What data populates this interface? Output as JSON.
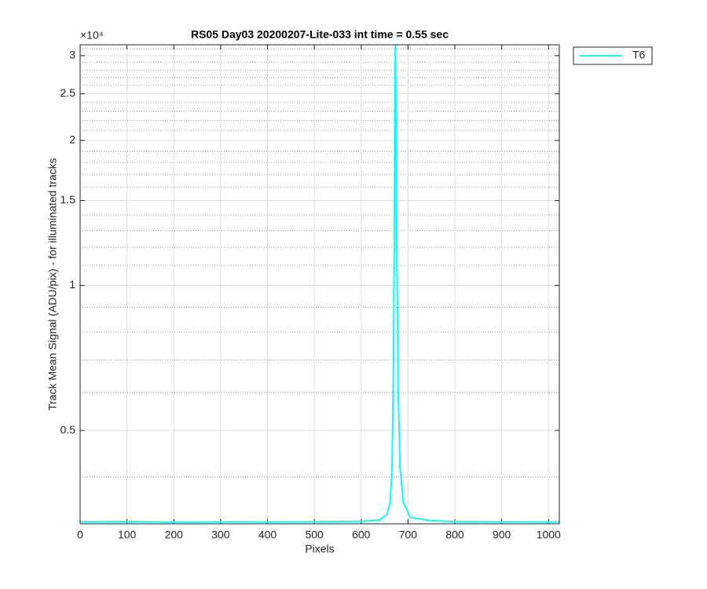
{
  "chart_data": {
    "type": "line",
    "title": "RS05 Day03 20200207-Lite-033 int time = 0.55 sec",
    "xlabel": "Pixels",
    "ylabel": "Track Mean Signal (ADU/pix) - for illuminated tracks",
    "y_exponent": "×10⁴",
    "x": [
      0,
      100,
      200,
      300,
      400,
      500,
      600,
      640,
      655,
      662,
      666,
      669,
      671,
      672,
      673,
      674,
      676,
      679,
      683,
      690,
      705,
      750,
      800,
      900,
      1000,
      1023
    ],
    "series": [
      {
        "name": "T6",
        "color": "#00ffff",
        "values": [
          3230,
          3235,
          3225,
          3230,
          3228,
          3232,
          3240,
          3260,
          3350,
          3550,
          4200,
          7000,
          15000,
          25000,
          31600,
          24000,
          12000,
          6000,
          4200,
          3550,
          3300,
          3250,
          3235,
          3230,
          3228,
          3230
        ]
      }
    ],
    "xlim": [
      0,
      1023
    ],
    "xticks": [
      0,
      100,
      200,
      300,
      400,
      500,
      600,
      700,
      800,
      900,
      1000
    ],
    "ylim": [
      3200,
      31600
    ],
    "yscale": "log",
    "yticks": [
      {
        "value": 5000,
        "label": "0.5"
      },
      {
        "value": 10000,
        "label": "1"
      },
      {
        "value": 15000,
        "label": "1.5"
      },
      {
        "value": 20000,
        "label": "2"
      },
      {
        "value": 25000,
        "label": "2.5"
      },
      {
        "value": 30000,
        "label": "3"
      }
    ],
    "yminorticks": [
      4000,
      6000,
      7000,
      8000,
      9000,
      11000,
      12000,
      13000,
      14000,
      16000,
      17000,
      18000,
      19000,
      21000,
      22000,
      23000,
      24000,
      26000,
      27000,
      28000,
      29000,
      31000
    ],
    "grid": true,
    "legend": "top-right-outside"
  }
}
